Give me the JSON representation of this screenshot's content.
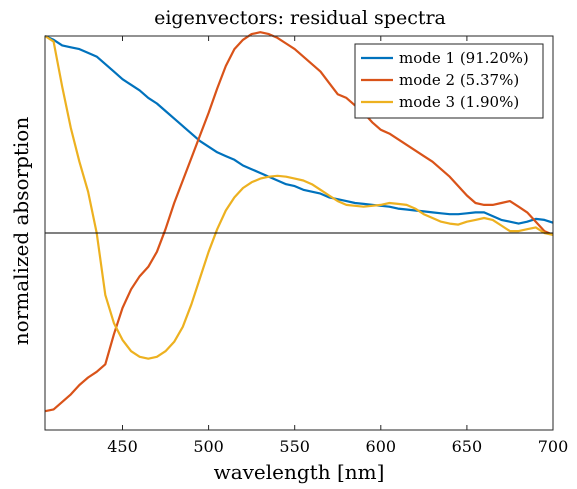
{
  "chart_data": {
    "type": "line",
    "title": "eigenvectors: residual spectra",
    "xlabel": "wavelength [nm]",
    "ylabel": "normalized absorption",
    "xlim": [
      405,
      700
    ],
    "ylim": [
      -1.05,
      1.05
    ],
    "xticks": [
      450,
      500,
      550,
      600,
      650,
      700
    ],
    "zero_line": true,
    "grid": false,
    "legend_position": "top-right",
    "series": [
      {
        "name": "mode 1 (91.20%)",
        "color": "#0072BD",
        "x": [
          405,
          410,
          415,
          420,
          425,
          430,
          435,
          440,
          445,
          450,
          455,
          460,
          465,
          470,
          475,
          480,
          485,
          490,
          495,
          500,
          505,
          510,
          515,
          520,
          525,
          530,
          535,
          540,
          545,
          550,
          555,
          560,
          565,
          570,
          575,
          580,
          585,
          590,
          595,
          600,
          605,
          610,
          615,
          620,
          625,
          630,
          635,
          640,
          645,
          650,
          655,
          660,
          665,
          670,
          675,
          680,
          685,
          690,
          695,
          700
        ],
        "y": [
          1.05,
          1.03,
          1.0,
          0.99,
          0.98,
          0.96,
          0.94,
          0.9,
          0.86,
          0.82,
          0.79,
          0.76,
          0.72,
          0.69,
          0.65,
          0.61,
          0.57,
          0.53,
          0.49,
          0.46,
          0.43,
          0.41,
          0.39,
          0.36,
          0.34,
          0.32,
          0.3,
          0.28,
          0.26,
          0.25,
          0.23,
          0.22,
          0.21,
          0.19,
          0.18,
          0.17,
          0.16,
          0.155,
          0.15,
          0.145,
          0.14,
          0.13,
          0.125,
          0.12,
          0.115,
          0.11,
          0.105,
          0.1,
          0.1,
          0.105,
          0.11,
          0.11,
          0.09,
          0.07,
          0.06,
          0.05,
          0.06,
          0.075,
          0.07,
          0.055
        ]
      },
      {
        "name": "mode 2 (5.37%)",
        "color": "#D95319",
        "x": [
          405,
          410,
          415,
          420,
          425,
          430,
          435,
          440,
          445,
          450,
          455,
          460,
          465,
          470,
          475,
          480,
          485,
          490,
          495,
          500,
          505,
          510,
          515,
          520,
          525,
          530,
          535,
          540,
          545,
          550,
          555,
          560,
          565,
          570,
          575,
          580,
          585,
          590,
          595,
          600,
          605,
          610,
          615,
          620,
          625,
          630,
          635,
          640,
          645,
          650,
          655,
          660,
          665,
          670,
          675,
          680,
          685,
          690,
          695,
          700
        ],
        "y": [
          -0.95,
          -0.94,
          -0.9,
          -0.86,
          -0.81,
          -0.77,
          -0.74,
          -0.7,
          -0.54,
          -0.4,
          -0.3,
          -0.23,
          -0.18,
          -0.1,
          0.02,
          0.16,
          0.28,
          0.4,
          0.52,
          0.64,
          0.77,
          0.89,
          0.98,
          1.03,
          1.06,
          1.07,
          1.06,
          1.04,
          1.01,
          0.98,
          0.94,
          0.9,
          0.86,
          0.8,
          0.74,
          0.72,
          0.68,
          0.64,
          0.59,
          0.55,
          0.53,
          0.5,
          0.47,
          0.44,
          0.41,
          0.38,
          0.34,
          0.3,
          0.25,
          0.2,
          0.16,
          0.15,
          0.15,
          0.16,
          0.17,
          0.14,
          0.11,
          0.06,
          0.01,
          -0.01
        ]
      },
      {
        "name": "mode 3 (1.90%)",
        "color": "#EDB120",
        "x": [
          405,
          410,
          415,
          420,
          425,
          430,
          435,
          440,
          445,
          450,
          455,
          460,
          465,
          470,
          475,
          480,
          485,
          490,
          495,
          500,
          505,
          510,
          515,
          520,
          525,
          530,
          535,
          540,
          545,
          550,
          555,
          560,
          565,
          570,
          575,
          580,
          585,
          590,
          595,
          600,
          605,
          610,
          615,
          620,
          625,
          630,
          635,
          640,
          645,
          650,
          655,
          660,
          665,
          670,
          675,
          680,
          685,
          690,
          695,
          700
        ],
        "y": [
          1.05,
          1.02,
          0.78,
          0.56,
          0.38,
          0.22,
          0.0,
          -0.33,
          -0.48,
          -0.57,
          -0.63,
          -0.66,
          -0.67,
          -0.66,
          -0.63,
          -0.58,
          -0.5,
          -0.38,
          -0.24,
          -0.1,
          0.02,
          0.12,
          0.19,
          0.24,
          0.27,
          0.29,
          0.3,
          0.305,
          0.3,
          0.29,
          0.28,
          0.26,
          0.23,
          0.2,
          0.17,
          0.15,
          0.145,
          0.14,
          0.145,
          0.15,
          0.16,
          0.155,
          0.15,
          0.13,
          0.1,
          0.08,
          0.06,
          0.05,
          0.045,
          0.06,
          0.07,
          0.08,
          0.07,
          0.04,
          0.01,
          0.01,
          0.02,
          0.03,
          0.0,
          -0.01
        ]
      }
    ]
  }
}
